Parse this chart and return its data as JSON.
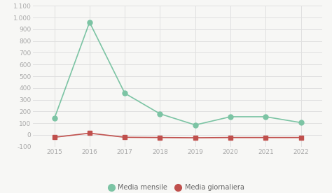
{
  "years": [
    2015,
    2016,
    2017,
    2018,
    2019,
    2020,
    2021,
    2022
  ],
  "media_mensile": [
    140,
    960,
    355,
    180,
    85,
    155,
    155,
    105
  ],
  "media_giornaliera": [
    -20,
    15,
    -20,
    -22,
    -24,
    -22,
    -22,
    -22
  ],
  "mensile_color": "#7cc4a4",
  "giornaliera_color": "#c0504d",
  "background_color": "#f7f7f5",
  "grid_color": "#e0e0e0",
  "ylim": [
    -100,
    1100
  ],
  "yticks": [
    -100,
    0,
    100,
    200,
    300,
    400,
    500,
    600,
    700,
    800,
    900,
    1000,
    1100
  ],
  "ytick_labels": [
    "-100",
    "0",
    "100",
    "200",
    "300",
    "400",
    "500",
    "600",
    "700",
    "800",
    "900",
    "1.000",
    "1.100"
  ],
  "legend_mensile": "Media mensile",
  "legend_giornaliera": "Media giornaliera",
  "mensile_marker_size": 5,
  "giornaliera_marker_size": 4,
  "line_width": 1.2,
  "text_color": "#aaaaaa",
  "legend_text_color": "#666666"
}
